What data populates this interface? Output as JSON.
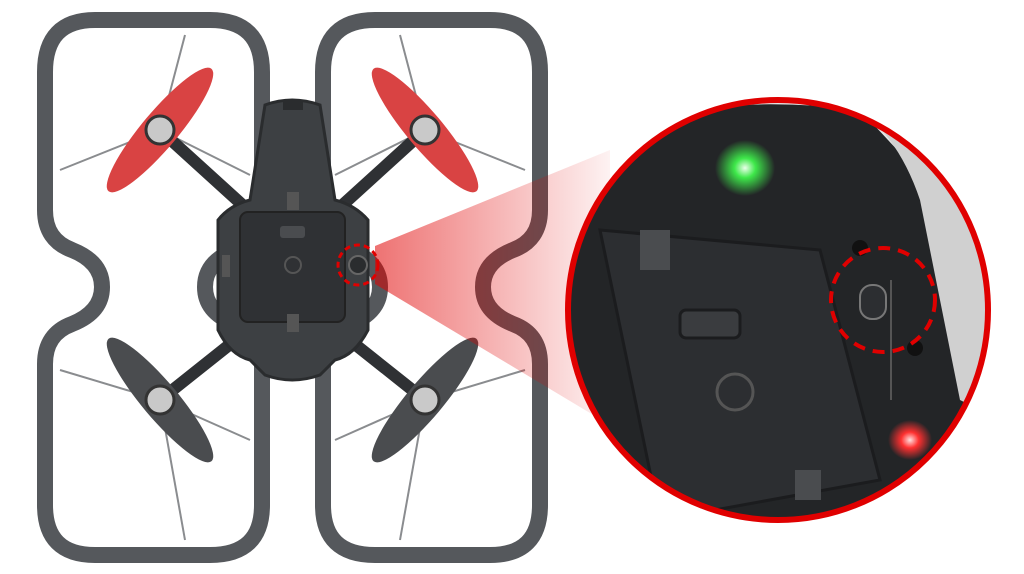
{
  "figure": {
    "subject": "drone-top-view-with-zoomed-button-callout",
    "colors": {
      "background": "#ffffff",
      "frame": "#55585c",
      "body": "#3d4043",
      "body_dark": "#2a2c2e",
      "front_propeller": "#d94343",
      "rear_propeller": "#4a4c4f",
      "highlight_red": "#e00000",
      "led_green": "#3ee84a",
      "led_red": "#ff3030"
    },
    "icons": [
      "drone-icon",
      "propeller-icon",
      "magnifier-callout-icon",
      "power-button-icon"
    ]
  }
}
